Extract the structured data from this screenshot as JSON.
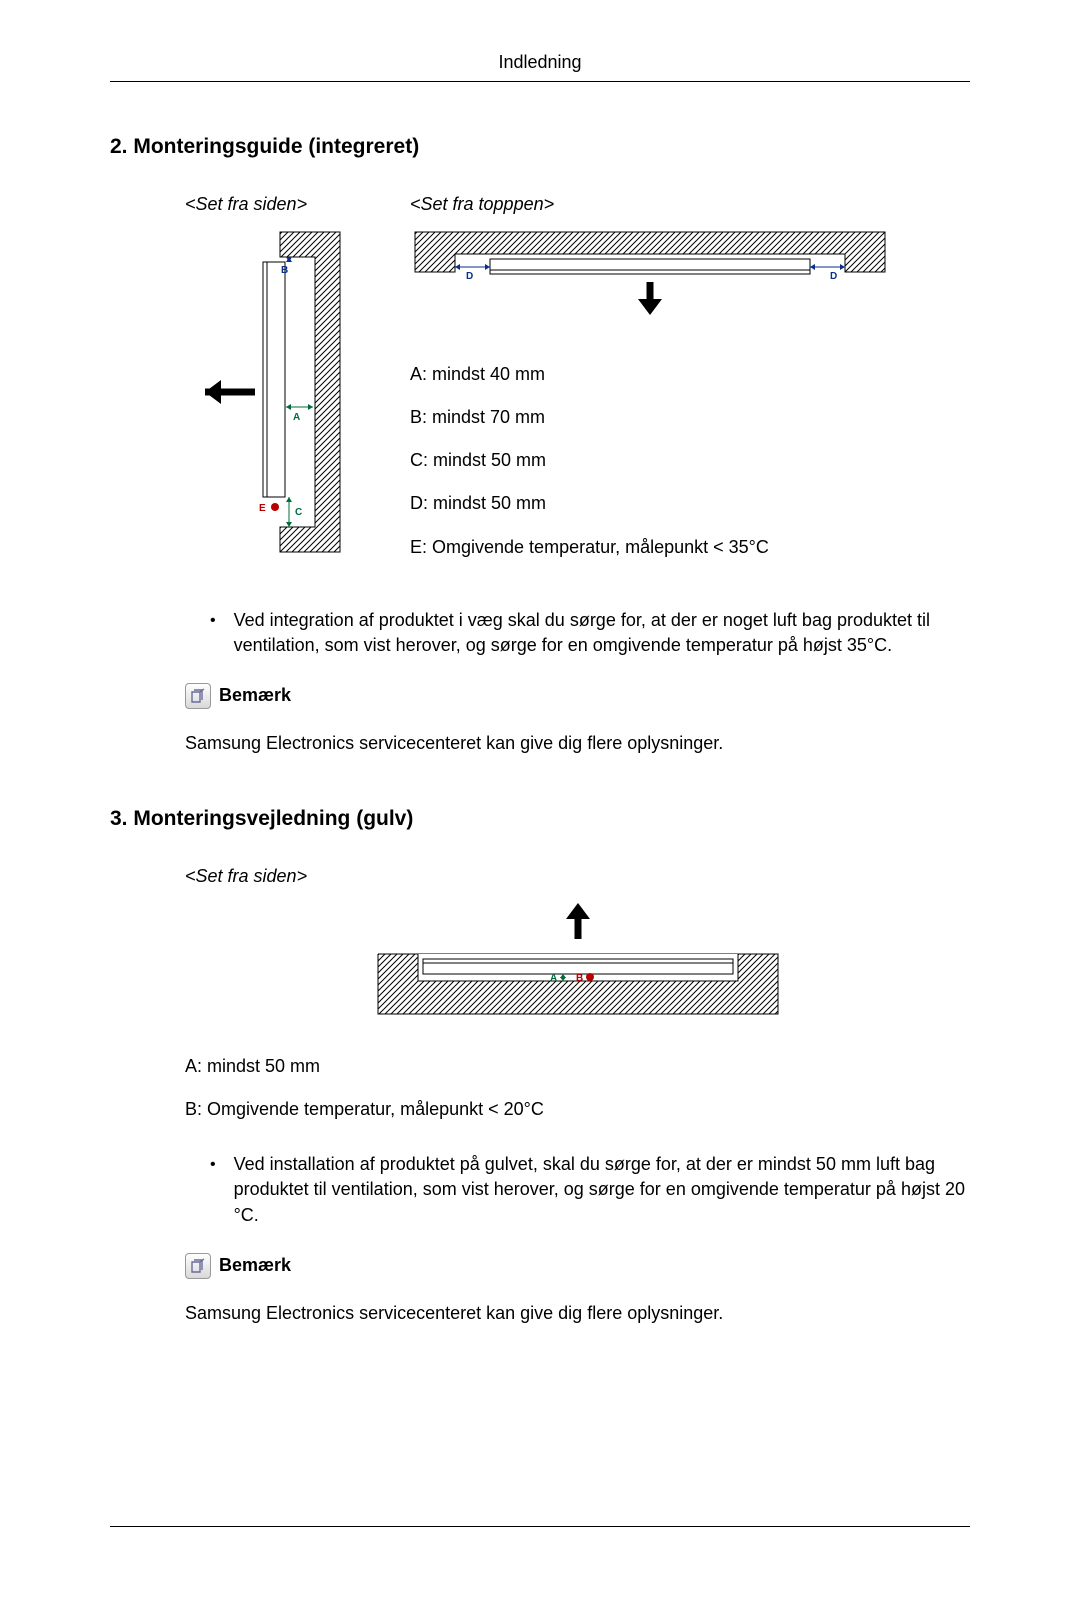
{
  "header": {
    "title": "Indledning"
  },
  "section2": {
    "heading": "2. Monteringsguide (integreret)",
    "view_side": "<Set fra siden>",
    "view_top": "<Set fra topppen>",
    "spec_a": "A: mindst 40 mm",
    "spec_b": "B: mindst 70 mm",
    "spec_c": "C: mindst 50 mm",
    "spec_d": "D: mindst 50 mm",
    "spec_e": "E: Omgivende temperatur, målepunkt < 35°C",
    "bullet": "Ved integration af produktet i væg skal du sørge for, at der er noget luft bag produktet til ventilation, som vist herover, og sørge for en omgivende temperatur på højst 35°C.",
    "note_label": "Bemærk",
    "note_body": "Samsung Electronics servicecenteret kan give dig flere oplysninger."
  },
  "section3": {
    "heading": "3. Monteringsvejledning (gulv)",
    "view_side": "<Set fra siden>",
    "spec_a": "A: mindst 50 mm",
    "spec_b": "B: Omgivende temperatur, målepunkt < 20°C",
    "bullet": "Ved installation af produktet på gulvet, skal du sørge for, at der er mindst 50 mm luft bag produktet til ventilation, som vist herover, og sørge for en omgivende temperatur på højst 20 °C.",
    "note_label": "Bemærk",
    "note_body": "Samsung Electronics servicecenteret kan give dig flere oplysninger."
  },
  "diagram": {
    "side": {
      "labels": {
        "a": "A",
        "b": "B",
        "c": "C",
        "e": "E"
      },
      "colors": {
        "a": "#006c3a",
        "b": "#0a2f8a",
        "c": "#006c3a",
        "e": "#b80000",
        "stroke": "#000000"
      }
    },
    "top": {
      "labels": {
        "d": "D"
      },
      "colors": {
        "d": "#0a2f8a",
        "stroke": "#000000"
      }
    },
    "floor": {
      "labels": {
        "a": "A",
        "b": "B"
      },
      "colors": {
        "a": "#006c3a",
        "b": "#b80000",
        "stroke": "#000000"
      }
    }
  }
}
